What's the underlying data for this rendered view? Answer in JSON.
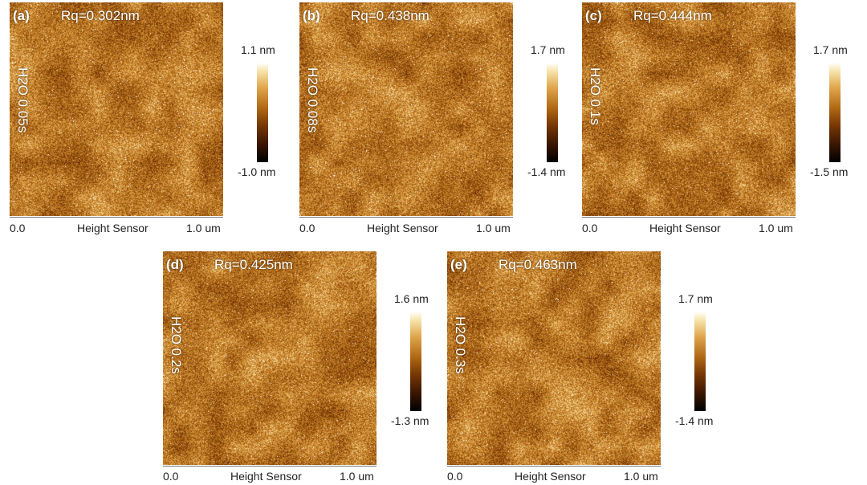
{
  "panels": [
    {
      "id": "a",
      "label": "(a)",
      "rq": "Rq=0.302nm",
      "condition": "H2O 0.05s",
      "scale_max": "1.1 nm",
      "scale_min": "-1.0 nm",
      "axis_start": "0.0",
      "axis_title": "Height Sensor",
      "axis_end": "1.0 um"
    },
    {
      "id": "b",
      "label": "(b)",
      "rq": "Rq=0.438nm",
      "condition": "H2O 0.08s",
      "scale_max": "1.7 nm",
      "scale_min": "-1.4 nm",
      "axis_start": "0.0",
      "axis_title": "Height Sensor",
      "axis_end": "1.0 um"
    },
    {
      "id": "c",
      "label": "(c)",
      "rq": "Rq=0.444nm",
      "condition": "H2O 0.1s",
      "scale_max": "1.7 nm",
      "scale_min": "-1.5 nm",
      "axis_start": "0.0",
      "axis_title": "Height Sensor",
      "axis_end": "1.0 um"
    },
    {
      "id": "d",
      "label": "(d)",
      "rq": "Rq=0.425nm",
      "condition": "H2O 0.2s",
      "scale_max": "1.6 nm",
      "scale_min": "-1.3 nm",
      "axis_start": "0.0",
      "axis_title": "Height Sensor",
      "axis_end": "1.0 um"
    },
    {
      "id": "e",
      "label": "(e)",
      "rq": "Rq=0.463nm",
      "condition": "H2O 0.3s",
      "scale_max": "1.7 nm",
      "scale_min": "-1.4 nm",
      "axis_start": "0.0",
      "axis_title": "Height Sensor",
      "axis_end": "1.0 um"
    }
  ]
}
